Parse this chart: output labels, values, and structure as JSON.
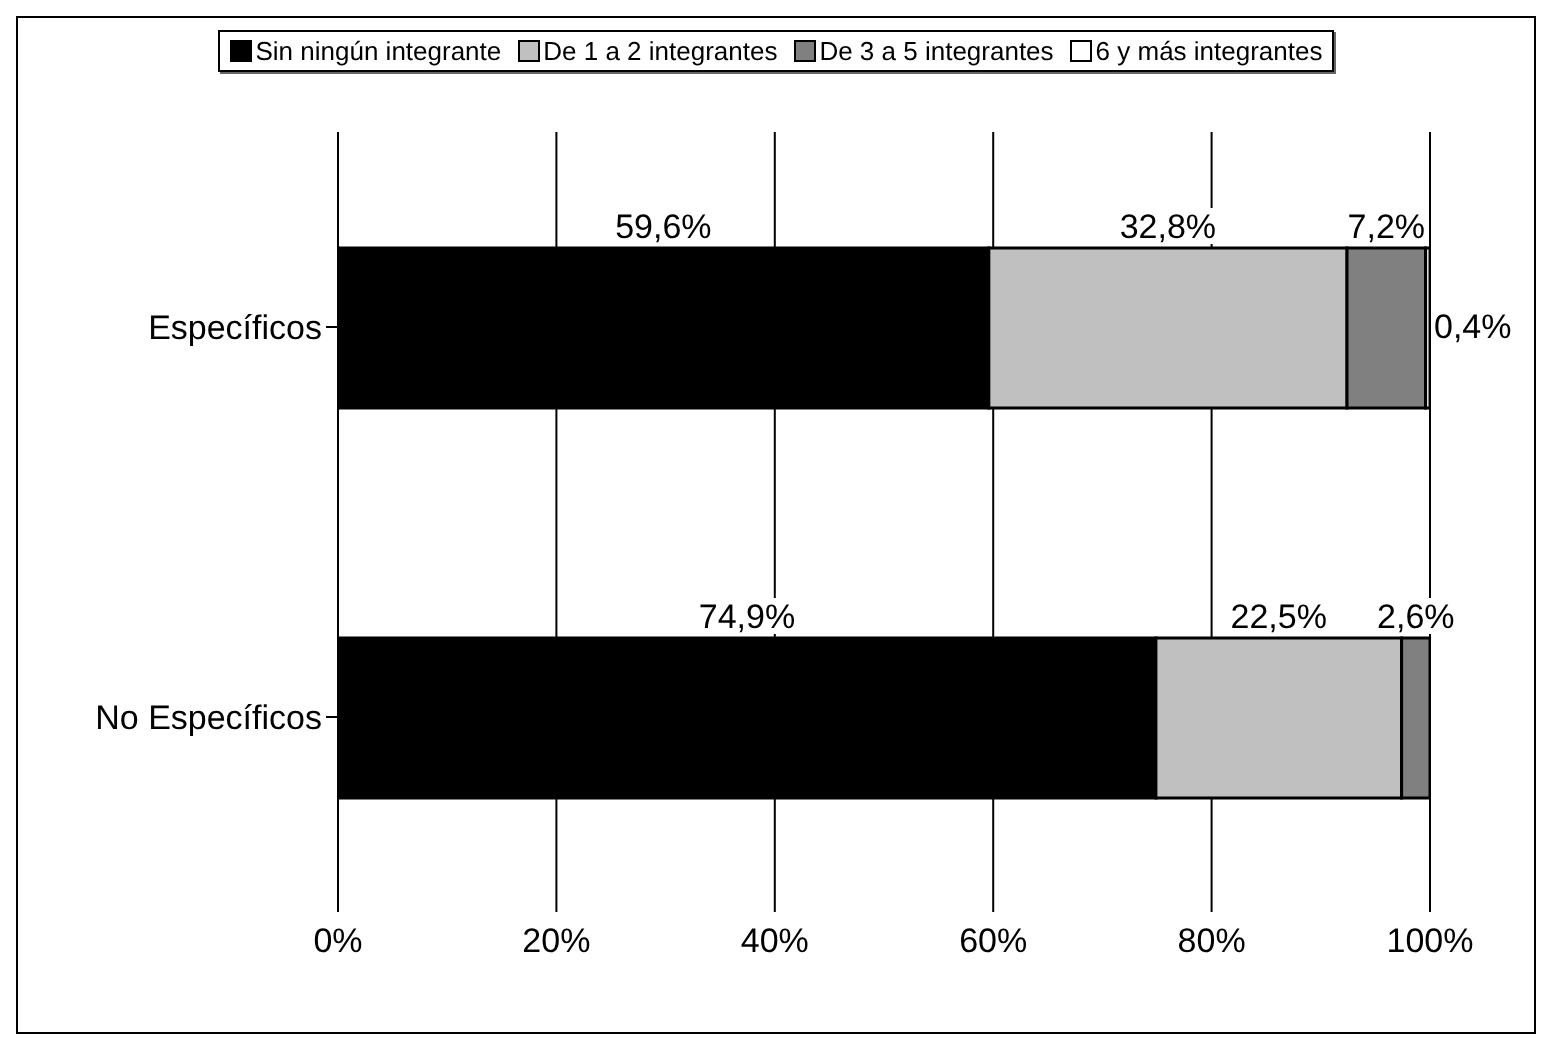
{
  "chart_data": {
    "type": "bar",
    "orientation": "horizontal",
    "stacked": true,
    "categories": [
      "Específicos",
      "No Específicos"
    ],
    "series": [
      {
        "name": "Sin ningún integrante",
        "color": "#000000",
        "values": [
          59.6,
          74.9
        ],
        "value_labels": [
          "59,6%",
          "74,9%"
        ]
      },
      {
        "name": "De 1 a 2 integrantes",
        "color": "#c0c0c0",
        "values": [
          32.8,
          22.5
        ],
        "value_labels": [
          "32,8%",
          "22,5%"
        ]
      },
      {
        "name": "De 3 a 5 integrantes",
        "color": "#808080",
        "values": [
          7.2,
          2.6
        ],
        "value_labels": [
          "7,2%",
          "2,6%"
        ]
      },
      {
        "name": "6 y más integrantes",
        "color": "#ffffff",
        "values": [
          0.4,
          0
        ],
        "value_labels": [
          "0,4%",
          null
        ]
      }
    ],
    "xlim": [
      0,
      100
    ],
    "xticks": [
      {
        "value": 0,
        "label": "0%"
      },
      {
        "value": 20,
        "label": "20%"
      },
      {
        "value": 40,
        "label": "40%"
      },
      {
        "value": 60,
        "label": "60%"
      },
      {
        "value": 80,
        "label": "80%"
      },
      {
        "value": 100,
        "label": "100%"
      }
    ],
    "grid": "x",
    "legend": "top"
  }
}
